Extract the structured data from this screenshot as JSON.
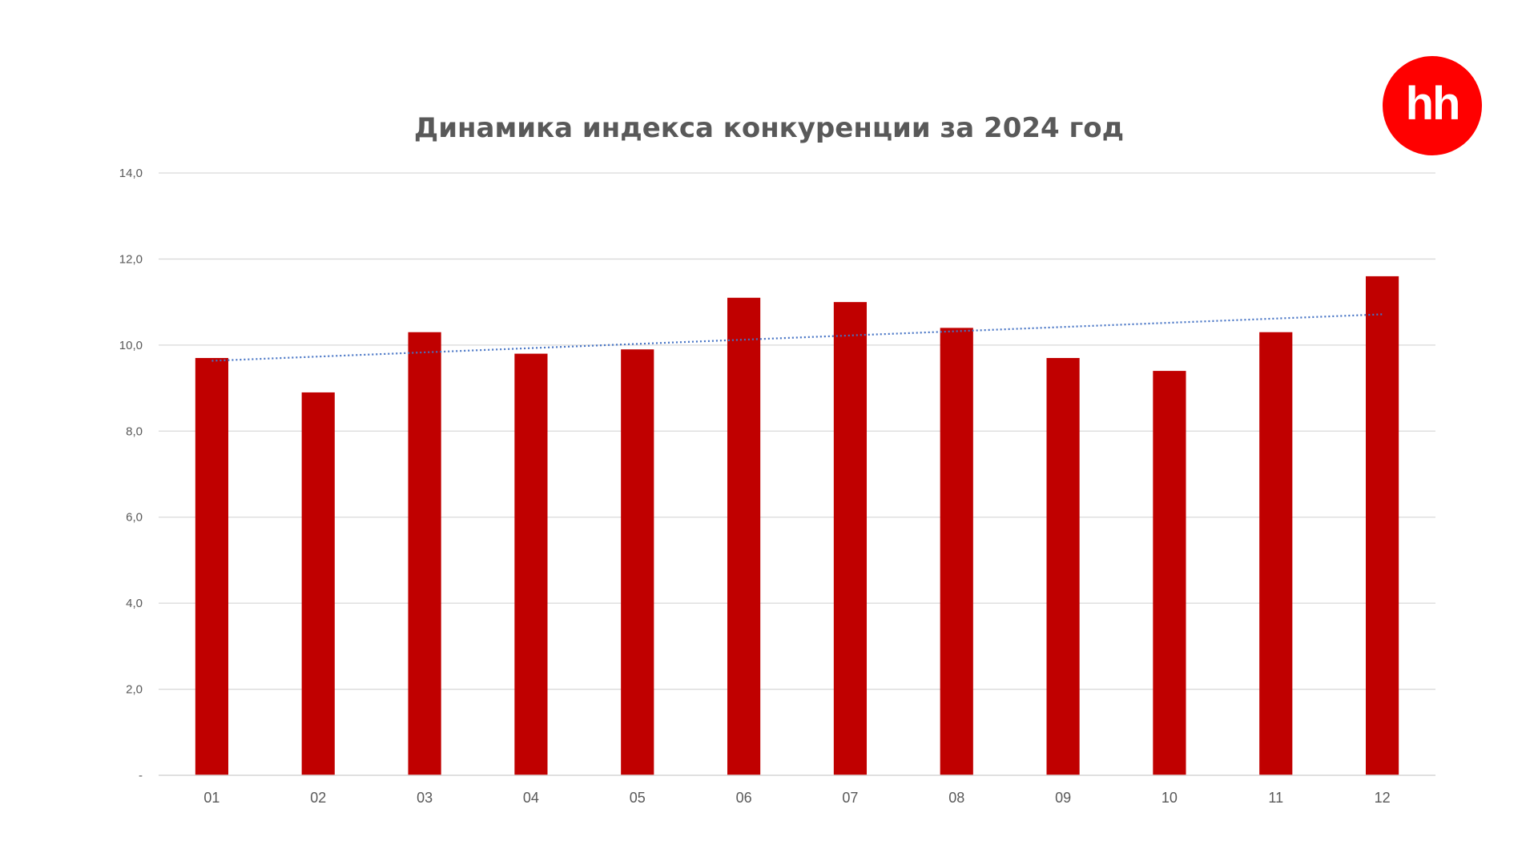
{
  "brand": {
    "logo_text": "hh",
    "color": "#ff0000"
  },
  "chart_data": {
    "type": "bar",
    "title": "Динамика индекса конкуренции за 2024 год",
    "xlabel": "",
    "ylabel": "",
    "categories": [
      "01",
      "02",
      "03",
      "04",
      "05",
      "06",
      "07",
      "08",
      "09",
      "10",
      "11",
      "12"
    ],
    "series": [
      {
        "values": [
          9.7,
          8.9,
          10.3,
          9.8,
          9.9,
          11.1,
          11.0,
          10.4,
          9.7,
          9.4,
          10.3,
          11.6
        ],
        "color": "#c00000"
      }
    ],
    "trendline": {
      "type": "linear",
      "style": "dotted",
      "color": "#4472c4"
    },
    "ylim": [
      0,
      14
    ],
    "yticks": [
      0,
      2,
      4,
      6,
      8,
      10,
      12,
      14
    ],
    "ytick_labels": [
      "-",
      "2,0",
      "4,0",
      "6,0",
      "8,0",
      "10,0",
      "12,0",
      "14,0"
    ],
    "grid": true,
    "legend": "none"
  }
}
